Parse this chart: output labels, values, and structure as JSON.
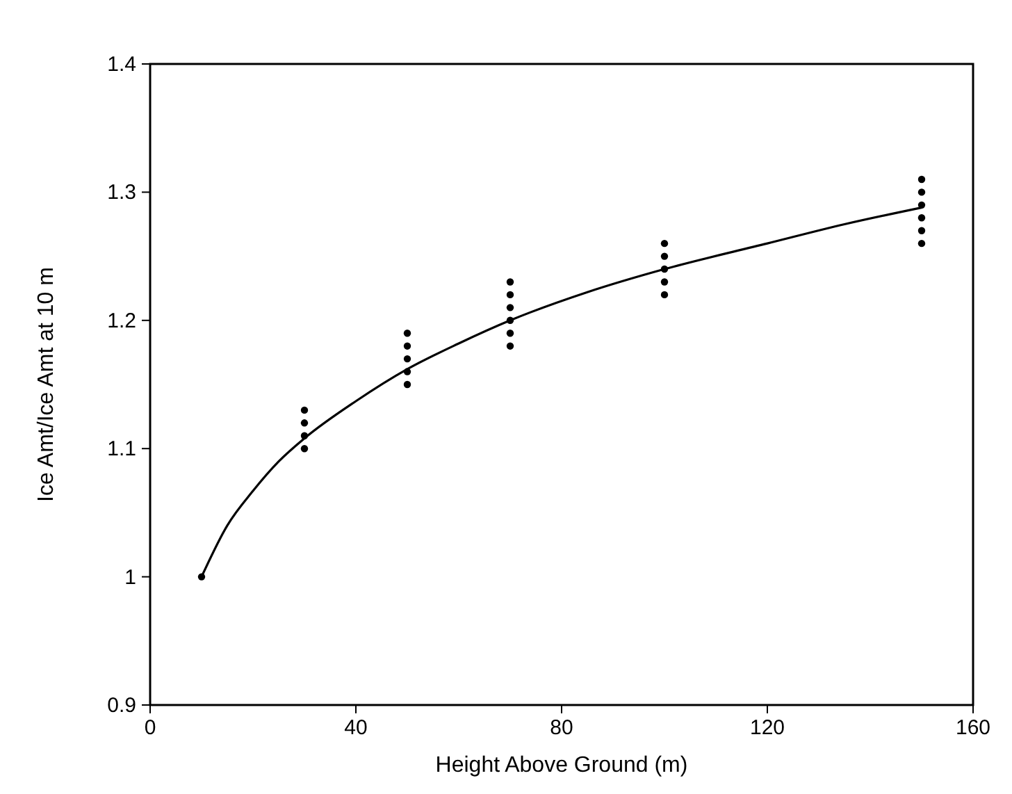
{
  "chart_data": {
    "type": "scatter",
    "xlabel": "Height Above Ground (m)",
    "ylabel": "Ice Amt/Ice Amt at 10 m",
    "xlim": [
      0,
      160
    ],
    "ylim": [
      0.9,
      1.4
    ],
    "xticks": [
      0,
      40,
      80,
      120,
      160
    ],
    "yticks": [
      0.9,
      1,
      1.1,
      1.2,
      1.3,
      1.4
    ],
    "grid": false,
    "marker": "circle",
    "series": [
      {
        "color": "#000000",
        "x": [
          10,
          30,
          30,
          30,
          30,
          50,
          50,
          50,
          50,
          50,
          70,
          70,
          70,
          70,
          70,
          70,
          100,
          100,
          100,
          100,
          100,
          150,
          150,
          150,
          150,
          150,
          150
        ],
        "values": [
          1.0,
          1.1,
          1.11,
          1.12,
          1.13,
          1.15,
          1.16,
          1.17,
          1.18,
          1.19,
          1.18,
          1.19,
          1.2,
          1.21,
          1.22,
          1.23,
          1.22,
          1.23,
          1.24,
          1.25,
          1.26,
          1.26,
          1.27,
          1.28,
          1.29,
          1.3,
          1.31
        ]
      },
      {
        "type": "line",
        "color": "#000000",
        "line_style": "solid",
        "marker": "none",
        "x": [
          10,
          15,
          20,
          25,
          30,
          40,
          50,
          60,
          70,
          85,
          100,
          120,
          135,
          150
        ],
        "values": [
          1.0,
          1.04,
          1.067,
          1.09,
          1.108,
          1.137,
          1.162,
          1.182,
          1.2,
          1.222,
          1.24,
          1.26,
          1.275,
          1.288
        ]
      }
    ]
  }
}
